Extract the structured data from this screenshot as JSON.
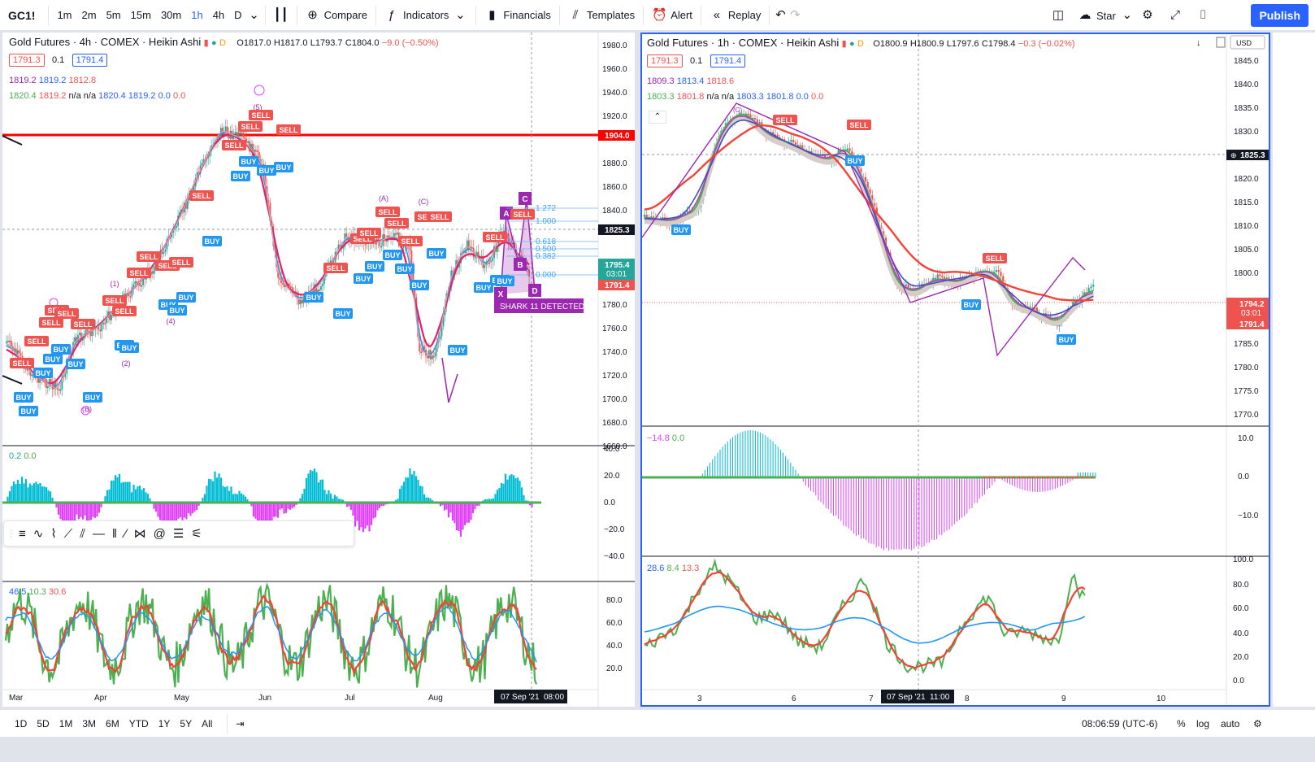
{
  "toolbar": {
    "symbol": "GC1!",
    "intervals": [
      "1m",
      "2m",
      "5m",
      "15m",
      "30m",
      "1h",
      "4h",
      "D"
    ],
    "active_interval": "1h",
    "compare": "Compare",
    "indicators": "Indicators",
    "financials": "Financials",
    "templates": "Templates",
    "alert": "Alert",
    "replay": "Replay",
    "star": "Star",
    "publish": "Publish"
  },
  "left_chart": {
    "title": "Gold Futures · 4h · COMEX · Heikin Ashi",
    "ohlc": {
      "o": "O1817.0",
      "h": "H1817.0",
      "l": "L1793.7",
      "c": "C1804.0",
      "chg": "−9.0 (−0.50%)"
    },
    "bid": "1791.3",
    "spread": "0.1",
    "ask": "1791.4",
    "line1": [
      "1819.2",
      "1819.2",
      "1812.8"
    ],
    "line2": [
      "1820.4",
      "1819.2",
      "n/a",
      "n/a",
      "1820.4",
      "1819.2",
      "0.0",
      "0.0"
    ],
    "price_axis": [
      "1980.0",
      "1960.0",
      "1940.0",
      "1920.0",
      "1880.0",
      "1860.0",
      "1840.0",
      "1780.0",
      "1760.0",
      "1740.0",
      "1720.0",
      "1700.0",
      "1680.0",
      "1660.0"
    ],
    "tags": {
      "level": "1904.0",
      "cross": "1825.3",
      "last": "1795.4",
      "countdown": "03:01",
      "ask": "1791.4"
    },
    "osc_legend": [
      "0.2",
      "0.0"
    ],
    "osc_axis": [
      "40.0",
      "20.0",
      "0.0",
      "−20.0",
      "−40.0"
    ],
    "rsi_legend": [
      "46.5",
      "10.3",
      "30.6"
    ],
    "rsi_axis": [
      "80.0",
      "60.0",
      "40.0",
      "20.0"
    ],
    "time_axis": [
      "Mar",
      "Apr",
      "May",
      "Jun",
      "Jul",
      "Aug"
    ],
    "cursor_time": "07 Sep '21",
    "cursor_hour": "08:00",
    "pattern_label": "SHARK 11 DETECTED",
    "fib": [
      "1.272",
      "1.000",
      "0.618",
      "0.500",
      "0.382",
      "0.000"
    ],
    "pattern_points": [
      "X",
      "A",
      "B",
      "C",
      "D"
    ],
    "wave_labels": [
      "(1)",
      "(2)",
      "(4)",
      "(5)",
      "(A)",
      "(B)",
      "(C)"
    ]
  },
  "right_chart": {
    "title": "Gold Futures · 1h · COMEX · Heikin Ashi",
    "ohlc": {
      "o": "O1800.9",
      "h": "H1800.9",
      "l": "L1797.6",
      "c": "C1798.4",
      "chg": "−0.3 (−0.02%)"
    },
    "bid": "1791.3",
    "spread": "0.1",
    "ask": "1791.4",
    "line1": [
      "1809.3",
      "1813.4",
      "1818.6"
    ],
    "line2": [
      "1803.3",
      "1801.8",
      "n/a",
      "n/a",
      "1803.3",
      "1801.8",
      "0.0",
      "0.0"
    ],
    "currency": "USD",
    "price_axis": [
      "1845.0",
      "1840.0",
      "1835.0",
      "1830.0",
      "1820.0",
      "1815.0",
      "1810.0",
      "1805.0",
      "1800.0",
      "1790.0",
      "1785.0",
      "1780.0",
      "1775.0",
      "1770.0"
    ],
    "tags": {
      "cross": "1825.3",
      "last": "1794.2",
      "countdown": "03:01",
      "ask": "1791.4"
    },
    "osc_legend": [
      "−14.8",
      "0.0"
    ],
    "osc_axis": [
      "10.0",
      "0.0",
      "−10.0"
    ],
    "rsi_legend": [
      "28.6",
      "8.4",
      "13.3"
    ],
    "rsi_axis": [
      "100.0",
      "80.0",
      "60.0",
      "40.0",
      "20.0",
      "0.0"
    ],
    "time_axis": [
      "3",
      "6",
      "7",
      "8",
      "9",
      "10"
    ],
    "cursor_time": "07 Sep '21",
    "cursor_hour": "11:00"
  },
  "bottom": {
    "ranges": [
      "1D",
      "5D",
      "1M",
      "3M",
      "6M",
      "YTD",
      "1Y",
      "5Y",
      "All"
    ],
    "clock": "08:06:59 (UTC-6)",
    "pct": "%",
    "log": "log",
    "auto": "auto"
  },
  "signals": {
    "buy": "BUY",
    "sell": "SELL"
  },
  "colors": {
    "accent": "#2962ff",
    "bull": "#26a69a",
    "bear": "#ef5350",
    "purple": "#9c27b0",
    "ma_red": "#f44336"
  }
}
